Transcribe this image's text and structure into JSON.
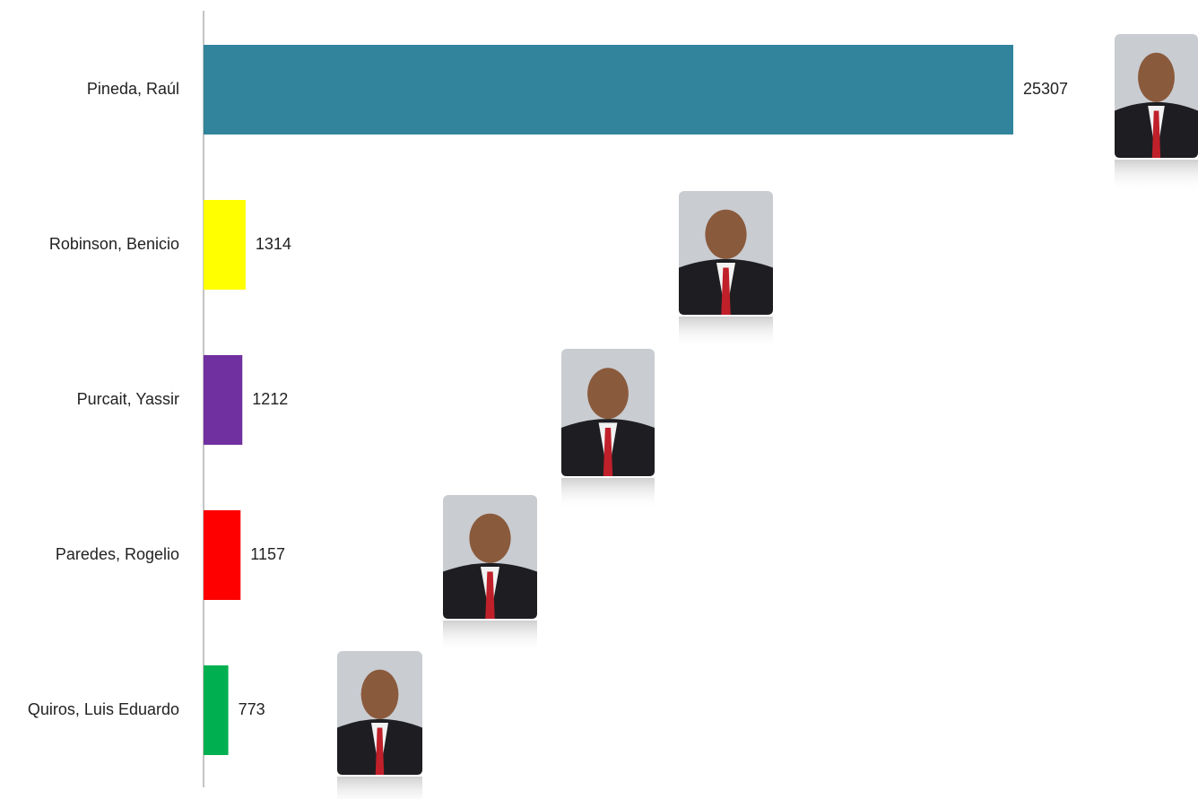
{
  "chart_data": {
    "type": "bar",
    "orientation": "horizontal",
    "categories": [
      "Pineda, Raúl",
      "Robinson, Benicio",
      "Purcait, Yassir",
      "Paredes, Rogelio",
      "Quiros, Luis Eduardo"
    ],
    "values": [
      25307,
      1314,
      1212,
      1157,
      773
    ],
    "colors": [
      "#31849b",
      "#ffff00",
      "#7030a0",
      "#ff0000",
      "#00b050"
    ]
  }
}
